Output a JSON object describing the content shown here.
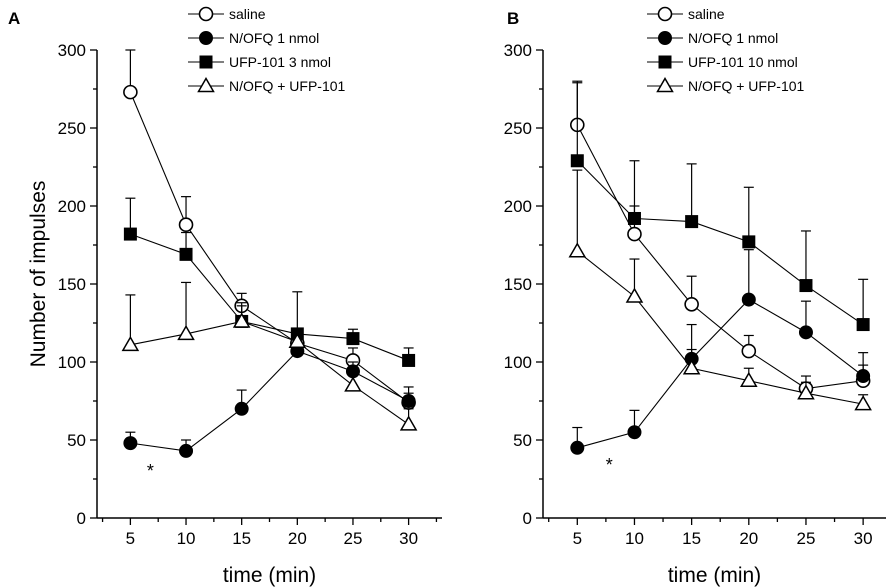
{
  "chart_data": [
    {
      "panel": "A",
      "type": "line",
      "xlabel": "time (min)",
      "ylabel": "Number of impulses",
      "xlim": [
        2,
        33
      ],
      "ylim": [
        0,
        300
      ],
      "xticks": [
        5,
        10,
        15,
        20,
        25,
        30
      ],
      "yticks": [
        0,
        50,
        100,
        150,
        200,
        250,
        300
      ],
      "legend_position": "top-right",
      "annotations": [
        {
          "text": "*",
          "x": 6.8,
          "y": 30
        }
      ],
      "series": [
        {
          "name": "saline",
          "marker": "open-circle",
          "x": [
            5,
            10,
            15,
            20,
            25,
            30
          ],
          "y": [
            273,
            188,
            136,
            112,
            101,
            74
          ],
          "err": [
            27,
            18,
            8,
            8,
            8,
            10
          ]
        },
        {
          "name": "N/OFQ 1 nmol",
          "marker": "filled-circle",
          "x": [
            5,
            10,
            15,
            20,
            25,
            30
          ],
          "y": [
            48,
            43,
            70,
            107,
            94,
            75
          ],
          "err": [
            7,
            7,
            12,
            8,
            6,
            5
          ]
        },
        {
          "name": "UFP-101 3  nmol",
          "marker": "filled-square",
          "x": [
            5,
            10,
            15,
            20,
            25,
            30
          ],
          "y": [
            182,
            169,
            126,
            118,
            115,
            101
          ],
          "err": [
            23,
            14,
            10,
            27,
            6,
            8
          ]
        },
        {
          "name": "N/OFQ + UFP-101",
          "marker": "open-triangle",
          "x": [
            5,
            10,
            15,
            20,
            25,
            30
          ],
          "y": [
            111,
            118,
            126,
            113,
            85,
            60
          ],
          "err": [
            32,
            33,
            12,
            7,
            8,
            10
          ]
        }
      ]
    },
    {
      "panel": "B",
      "type": "line",
      "xlabel": "time (min)",
      "ylabel": "",
      "xlim": [
        2,
        32
      ],
      "ylim": [
        0,
        300
      ],
      "xticks": [
        5,
        10,
        15,
        20,
        25,
        30
      ],
      "yticks": [
        0,
        50,
        100,
        150,
        200,
        250,
        300
      ],
      "legend_position": "top-right",
      "annotations": [
        {
          "text": "*",
          "x": 7.8,
          "y": 34
        }
      ],
      "series": [
        {
          "name": "saline",
          "marker": "open-circle",
          "x": [
            5,
            10,
            15,
            20,
            25,
            30
          ],
          "y": [
            252,
            182,
            137,
            107,
            83,
            88
          ],
          "err": [
            28,
            18,
            18,
            10,
            8,
            10
          ]
        },
        {
          "name": "N/OFQ 1 nmol",
          "marker": "filled-circle",
          "x": [
            5,
            10,
            15,
            20,
            25,
            30
          ],
          "y": [
            45,
            55,
            102,
            140,
            119,
            91
          ],
          "err": [
            13,
            14,
            22,
            32,
            20,
            15
          ]
        },
        {
          "name": "UFP-101 10  nmol",
          "marker": "filled-square",
          "x": [
            5,
            10,
            15,
            20,
            25,
            30
          ],
          "y": [
            229,
            192,
            190,
            177,
            149,
            124
          ],
          "err": [
            50,
            37,
            37,
            35,
            35,
            29
          ]
        },
        {
          "name": "N/OFQ + UFP-101",
          "marker": "open-triangle",
          "x": [
            5,
            10,
            15,
            20,
            25,
            30
          ],
          "y": [
            171,
            142,
            96,
            88,
            80,
            73
          ],
          "err": [
            52,
            24,
            12,
            8,
            7,
            6
          ]
        }
      ]
    }
  ]
}
